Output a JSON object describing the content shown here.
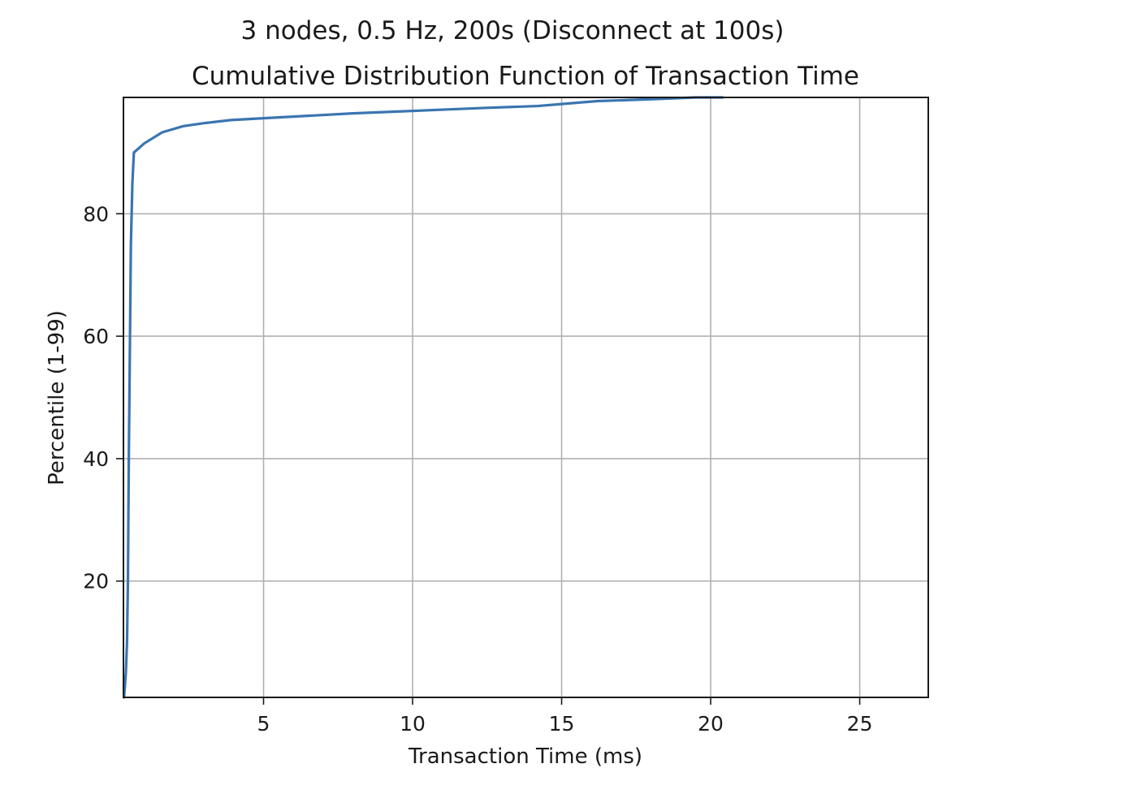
{
  "chart_data": {
    "type": "line",
    "title": "3 nodes, 0.5 Hz, 200s (Disconnect at 100s)",
    "subtitle": "Cumulative Distribution Function of Transaction Time",
    "xlabel": "Transaction Time (ms)",
    "ylabel": "Percentile (1-99)",
    "xlim": [
      0.3,
      27.3
    ],
    "ylim": [
      1,
      99
    ],
    "grid": true,
    "x_ticks": [
      5,
      10,
      15,
      20,
      25
    ],
    "x_tick_labels": [
      "5",
      "10",
      "15",
      "20",
      "25"
    ],
    "y_ticks": [
      20,
      40,
      60,
      80
    ],
    "y_tick_labels": [
      "20",
      "40",
      "60",
      "80"
    ],
    "line_color": "#3a75b0",
    "series": [
      {
        "x": [
          0.32,
          0.38,
          0.42,
          0.45,
          0.48,
          0.52,
          0.55,
          0.6,
          0.65,
          1.0,
          1.6,
          2.3,
          3.0,
          3.9,
          5.0,
          6.5,
          8.0,
          9.5,
          11.0,
          12.5,
          14.2,
          16.2,
          18.0,
          19.5,
          20.4
        ],
        "y": [
          1,
          5,
          10,
          20,
          40,
          60,
          75,
          85,
          90,
          91.5,
          93.3,
          94.3,
          94.8,
          95.3,
          95.6,
          96.0,
          96.4,
          96.7,
          97.0,
          97.3,
          97.6,
          98.4,
          98.7,
          99.0,
          99.0
        ]
      }
    ]
  }
}
